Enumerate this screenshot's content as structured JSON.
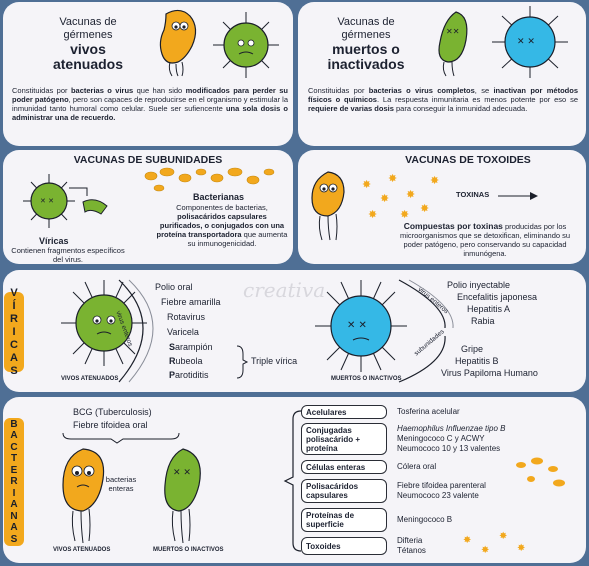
{
  "panel_live": {
    "title_l1": "Vacunas de",
    "title_l2": "gérmenes",
    "title_l3": "vivos",
    "title_l4": "atenuados",
    "desc_p1": "Constituidas por ",
    "desc_b1": "bacterias o virus",
    "desc_p2": " que han sido ",
    "desc_b2": "modificados para perder su poder patógeno",
    "desc_p3": ", pero son capaces de reproducirse en el organismo y estimular la inmunidad tanto humoral como celular. Suele ser sufiencente ",
    "desc_b3": "una sola dosis o administrar una de recuerdo."
  },
  "panel_dead": {
    "title_l1": "Vacunas de",
    "title_l2": "gérmenes",
    "title_l3": "muertos o",
    "title_l4": "inactivados",
    "desc_p1": "Constituidas por ",
    "desc_b1": "bacterias o virus completos",
    "desc_p2": ", se ",
    "desc_b2": "inactivan por métodos físicos o químicos",
    "desc_p3": ". La respuesta inmunitaria es menos potente por eso se ",
    "desc_b3": "requiere de varias dosis",
    "desc_p4": " para conseguir la inmunidad adecuada."
  },
  "panel_subunits": {
    "title": "VACUNAS DE SUBUNIDADES",
    "viricas_label": "Víricas",
    "viricas_desc": "Contienen fragmentos específicos del virus.",
    "bact_label": "Bacterianas",
    "bact_p1": "Componentes de bacterias, ",
    "bact_b1": "polisacáridos capsulares purificados, o conjugados con una proteína transportadora",
    "bact_p2": " que aumenta su inmunogenicidad."
  },
  "panel_toxoids": {
    "title": "VACUNAS DE TOXOIDES",
    "toxins_label": "TOXINAS",
    "desc_b1": "Compuestas por toxinas",
    "desc_p1": " producidas por los microorganismos que se detoxifican, eliminando su poder patógeno, pero conservando su capacidad inmunógena."
  },
  "panel_viricas": {
    "side_label": [
      "V",
      "Í",
      "R",
      "I",
      "C",
      "A",
      "S"
    ],
    "live_items": [
      "Polio oral",
      "Fiebre amarilla",
      "Rotavirus",
      "Varicela"
    ],
    "triple_items": [
      {
        "first": "S",
        "rest": "arampión"
      },
      {
        "first": "R",
        "rest": "ubeola"
      },
      {
        "first": "P",
        "rest": "arotiditis"
      }
    ],
    "triple_label": "Triple vírica",
    "arc_live_label": "virus enteros",
    "live_caption": "VIVOS ATENUADOS",
    "dead_caption": "MUERTOS O INACTIVOS",
    "arc_dead_top": "virus enteros",
    "arc_dead_bottom": "subunidades",
    "dead_top_items": [
      "Polio inyectable",
      "Encefalitis japonesa",
      "Hepatitis A",
      "Rabia"
    ],
    "dead_bottom_items": [
      "Gripe",
      "Hepatitis B",
      "Virus Papiloma Humano"
    ],
    "watermark": "creativa"
  },
  "panel_bacterianas": {
    "side_label": [
      "B",
      "A",
      "C",
      "T",
      "E",
      "R",
      "I",
      "A",
      "N",
      "A",
      "S"
    ],
    "live_items": [
      "BCG (Tuberculosis)",
      "Fiebre tifoidea oral"
    ],
    "bact_caption": "bacterias enteras",
    "live_caption": "VIVOS ATENUADOS",
    "dead_caption": "MUERTOS O INACTIVOS",
    "rows": [
      {
        "label": "Acelulares",
        "values": [
          "Tosferina acelular"
        ]
      },
      {
        "label": "Conjugadas polisacárido + proteína",
        "values": [
          "Haemophilus Influenzae tipo B",
          "Meningococo C y ACWY",
          "Neumococo 10 y 13 valentes"
        ]
      },
      {
        "label": "Células enteras",
        "values": [
          "Cólera oral"
        ]
      },
      {
        "label": "Polisacáridos capsulares",
        "values": [
          "Fiebre tifoidea parenteral",
          "Neumococo 23 valente"
        ]
      },
      {
        "label": "Proteínas de superficie",
        "values": [
          "Meningococo B"
        ]
      },
      {
        "label": "Toxoides",
        "values": [
          "Difteria",
          "Tétanos"
        ]
      }
    ]
  },
  "colors": {
    "background": "#4f6f95",
    "card": "#f5f4f8",
    "accent_orange": "#f2a81d",
    "virus_green": "#7ab331",
    "virus_blue": "#35b8e6"
  }
}
